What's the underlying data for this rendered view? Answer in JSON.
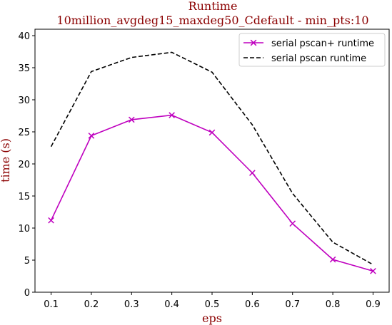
{
  "chart_data": {
    "type": "line",
    "title": "Runtime",
    "subtitle": "10million_avgdeg15_maxdeg50_Cdefault - min_pts:10",
    "xlabel": "eps",
    "ylabel": "time (s)",
    "x": [
      0.1,
      0.2,
      0.3,
      0.4,
      0.5,
      0.6,
      0.7,
      0.8,
      0.9
    ],
    "x_ticks": [
      "0.1",
      "0.2",
      "0.3",
      "0.4",
      "0.5",
      "0.6",
      "0.7",
      "0.8",
      "0.9"
    ],
    "y_ticks": [
      "0",
      "5",
      "10",
      "15",
      "20",
      "25",
      "30",
      "35",
      "40"
    ],
    "xlim": [
      0.06,
      0.94
    ],
    "ylim": [
      0,
      41
    ],
    "grid": false,
    "legend_position": "top-right",
    "series": [
      {
        "name": "serial pscan+ runtime",
        "values": [
          11.2,
          24.4,
          26.9,
          27.6,
          24.9,
          18.6,
          10.7,
          5.1,
          3.3
        ],
        "color": "#bf00bf",
        "style": "solid",
        "marker": "x"
      },
      {
        "name": "serial pscan runtime",
        "values": [
          22.7,
          34.4,
          36.6,
          37.4,
          34.3,
          26.1,
          15.4,
          7.8,
          4.3
        ],
        "color": "#000000",
        "style": "dashed",
        "marker": "none"
      }
    ]
  }
}
